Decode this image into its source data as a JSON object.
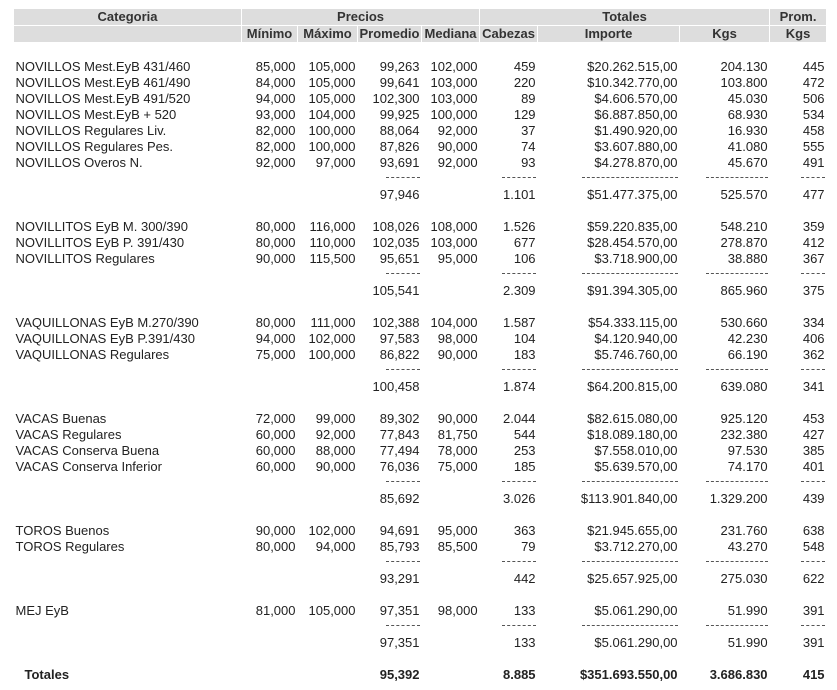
{
  "header": {
    "row1": [
      "Categoria",
      "Precios",
      "Totales",
      "Prom."
    ],
    "row2": [
      "Mínimo",
      "Máximo",
      "Promedio",
      "Mediana",
      "Cabezas",
      "Importe",
      "Kgs",
      "Kgs"
    ]
  },
  "groups": [
    {
      "rows": [
        [
          "NOVILLOS Mest.EyB 431/460",
          "85,000",
          "105,000",
          "99,263",
          "102,000",
          "459",
          "$20.262.515,00",
          "204.130",
          "445"
        ],
        [
          "NOVILLOS Mest.EyB 461/490",
          "84,000",
          "105,000",
          "99,641",
          "103,000",
          "220",
          "$10.342.770,00",
          "103.800",
          "472"
        ],
        [
          "NOVILLOS Mest.EyB 491/520",
          "94,000",
          "105,000",
          "102,300",
          "103,000",
          "89",
          "$4.606.570,00",
          "45.030",
          "506"
        ],
        [
          "NOVILLOS Mest.EyB + 520",
          "93,000",
          "104,000",
          "99,925",
          "100,000",
          "129",
          "$6.887.850,00",
          "68.930",
          "534"
        ],
        [
          "NOVILLOS Regulares Liv.",
          "82,000",
          "100,000",
          "88,064",
          "92,000",
          "37",
          "$1.490.920,00",
          "16.930",
          "458"
        ],
        [
          "NOVILLOS Regulares Pes.",
          "82,000",
          "100,000",
          "87,826",
          "90,000",
          "74",
          "$3.607.880,00",
          "41.080",
          "555"
        ],
        [
          "NOVILLOS Overos N.",
          "92,000",
          "97,000",
          "93,691",
          "92,000",
          "93",
          "$4.278.870,00",
          "45.670",
          "491"
        ]
      ],
      "subtotal": [
        "97,946",
        "1.101",
        "$51.477.375,00",
        "525.570",
        "477"
      ]
    },
    {
      "rows": [
        [
          "NOVILLITOS EyB M. 300/390",
          "80,000",
          "116,000",
          "108,026",
          "108,000",
          "1.526",
          "$59.220.835,00",
          "548.210",
          "359"
        ],
        [
          "NOVILLITOS EyB P. 391/430",
          "80,000",
          "110,000",
          "102,035",
          "103,000",
          "677",
          "$28.454.570,00",
          "278.870",
          "412"
        ],
        [
          "NOVILLITOS Regulares",
          "90,000",
          "115,500",
          "95,651",
          "95,000",
          "106",
          "$3.718.900,00",
          "38.880",
          "367"
        ]
      ],
      "subtotal": [
        "105,541",
        "2.309",
        "$91.394.305,00",
        "865.960",
        "375"
      ]
    },
    {
      "rows": [
        [
          "VAQUILLONAS EyB M.270/390",
          "80,000",
          "111,000",
          "102,388",
          "104,000",
          "1.587",
          "$54.333.115,00",
          "530.660",
          "334"
        ],
        [
          "VAQUILLONAS EyB P.391/430",
          "94,000",
          "102,000",
          "97,583",
          "98,000",
          "104",
          "$4.120.940,00",
          "42.230",
          "406"
        ],
        [
          "VAQUILLONAS Regulares",
          "75,000",
          "100,000",
          "86,822",
          "90,000",
          "183",
          "$5.746.760,00",
          "66.190",
          "362"
        ]
      ],
      "subtotal": [
        "100,458",
        "1.874",
        "$64.200.815,00",
        "639.080",
        "341"
      ]
    },
    {
      "rows": [
        [
          "VACAS Buenas",
          "72,000",
          "99,000",
          "89,302",
          "90,000",
          "2.044",
          "$82.615.080,00",
          "925.120",
          "453"
        ],
        [
          "VACAS Regulares",
          "60,000",
          "92,000",
          "77,843",
          "81,750",
          "544",
          "$18.089.180,00",
          "232.380",
          "427"
        ],
        [
          "VACAS Conserva Buena",
          "60,000",
          "88,000",
          "77,494",
          "78,000",
          "253",
          "$7.558.010,00",
          "97.530",
          "385"
        ],
        [
          "VACAS Conserva Inferior",
          "60,000",
          "90,000",
          "76,036",
          "75,000",
          "185",
          "$5.639.570,00",
          "74.170",
          "401"
        ]
      ],
      "subtotal": [
        "85,692",
        "3.026",
        "$113.901.840,00",
        "1.329.200",
        "439"
      ]
    },
    {
      "rows": [
        [
          "TOROS Buenos",
          "90,000",
          "102,000",
          "94,691",
          "95,000",
          "363",
          "$21.945.655,00",
          "231.760",
          "638"
        ],
        [
          "TOROS Regulares",
          "80,000",
          "94,000",
          "85,793",
          "85,500",
          "79",
          "$3.712.270,00",
          "43.270",
          "548"
        ]
      ],
      "subtotal": [
        "93,291",
        "442",
        "$25.657.925,00",
        "275.030",
        "622"
      ]
    },
    {
      "rows": [
        [
          "MEJ EyB",
          "81,000",
          "105,000",
          "97,351",
          "98,000",
          "133",
          "$5.061.290,00",
          "51.990",
          "391"
        ]
      ],
      "subtotal": [
        "97,351",
        "133",
        "$5.061.290,00",
        "51.990",
        "391"
      ]
    }
  ],
  "totals": [
    "Totales",
    "95,392",
    "8.885",
    "$351.693.550,00",
    "3.686.830",
    "415"
  ]
}
